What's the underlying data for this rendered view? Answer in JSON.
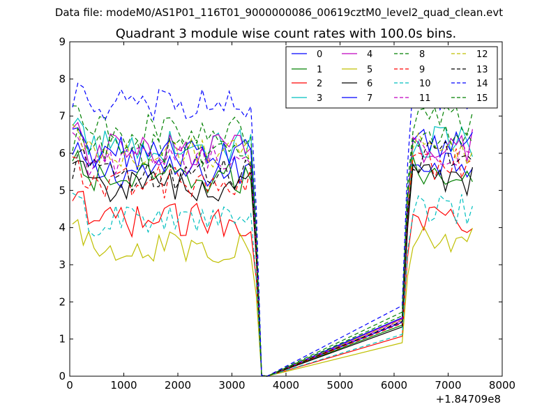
{
  "header": "Data file: modeM0/AS1P01_116T01_9000000086_00619cztM0_level2_quad_clean.evt",
  "chart_data": {
    "type": "line",
    "title": "Quadrant 3 module wise count rates with 100.0s bins.",
    "xlabel": "",
    "ylabel": "",
    "x_offset_label": "+1.84709e8",
    "xlim": [
      0,
      8000
    ],
    "ylim": [
      0,
      9
    ],
    "xticks": [
      0,
      1000,
      2000,
      3000,
      4000,
      5000,
      6000,
      7000,
      8000
    ],
    "yticks": [
      0,
      1,
      2,
      3,
      4,
      5,
      6,
      7,
      8,
      9
    ],
    "legend_position": "top-right",
    "legend_columns": 4,
    "x": [
      50,
      150,
      250,
      350,
      450,
      550,
      650,
      750,
      850,
      950,
      1050,
      1150,
      1250,
      1350,
      1450,
      1550,
      1650,
      1750,
      1850,
      1950,
      2050,
      2150,
      2250,
      2350,
      2450,
      2550,
      2650,
      2750,
      2850,
      2950,
      3050,
      3150,
      3250,
      3350,
      3450,
      3550,
      3650,
      6150,
      6250,
      6350,
      6450,
      6550,
      6650,
      6750,
      6850,
      6950,
      7050,
      7150,
      7250,
      7350,
      7450
    ],
    "gap_value": 0,
    "series": [
      {
        "name": "0",
        "color": "#0000ff",
        "dash": "solid",
        "base": 5.5,
        "after": 5.8
      },
      {
        "name": "1",
        "color": "#008000",
        "dash": "solid",
        "base": 5.3,
        "after": 5.5
      },
      {
        "name": "2",
        "color": "#ff0000",
        "dash": "solid",
        "base": 4.2,
        "after": 4.3
      },
      {
        "name": "3",
        "color": "#00bfbf",
        "dash": "solid",
        "base": 6.2,
        "after": 6.3
      },
      {
        "name": "4",
        "color": "#bf00bf",
        "dash": "solid",
        "base": 6.1,
        "after": 6.2
      },
      {
        "name": "5",
        "color": "#bfbf00",
        "dash": "solid",
        "base": 3.5,
        "after": 3.6
      },
      {
        "name": "6",
        "color": "#000000",
        "dash": "solid",
        "base": 5.1,
        "after": 5.3
      },
      {
        "name": "7",
        "color": "#0000ff",
        "dash": "solid",
        "base": 6.0,
        "after": 6.3
      },
      {
        "name": "8",
        "color": "#008000",
        "dash": "dashed",
        "base": 6.6,
        "after": 6.9
      },
      {
        "name": "9",
        "color": "#ff0000",
        "dash": "dashed",
        "base": 5.2,
        "after": 5.7
      },
      {
        "name": "10",
        "color": "#00bfbf",
        "dash": "dashed",
        "base": 4.2,
        "after": 4.5
      },
      {
        "name": "11",
        "color": "#bf00bf",
        "dash": "dashed",
        "base": 5.8,
        "after": 6.0
      },
      {
        "name": "12",
        "color": "#bfbf00",
        "dash": "dashed",
        "base": 6.0,
        "after": 6.1
      },
      {
        "name": "13",
        "color": "#000000",
        "dash": "dashed",
        "base": 5.4,
        "after": 5.9
      },
      {
        "name": "14",
        "color": "#0000ff",
        "dash": "dashed",
        "base": 7.3,
        "after": 7.6
      },
      {
        "name": "15",
        "color": "#008000",
        "dash": "dashed",
        "base": 6.1,
        "after": 6.5
      }
    ]
  }
}
